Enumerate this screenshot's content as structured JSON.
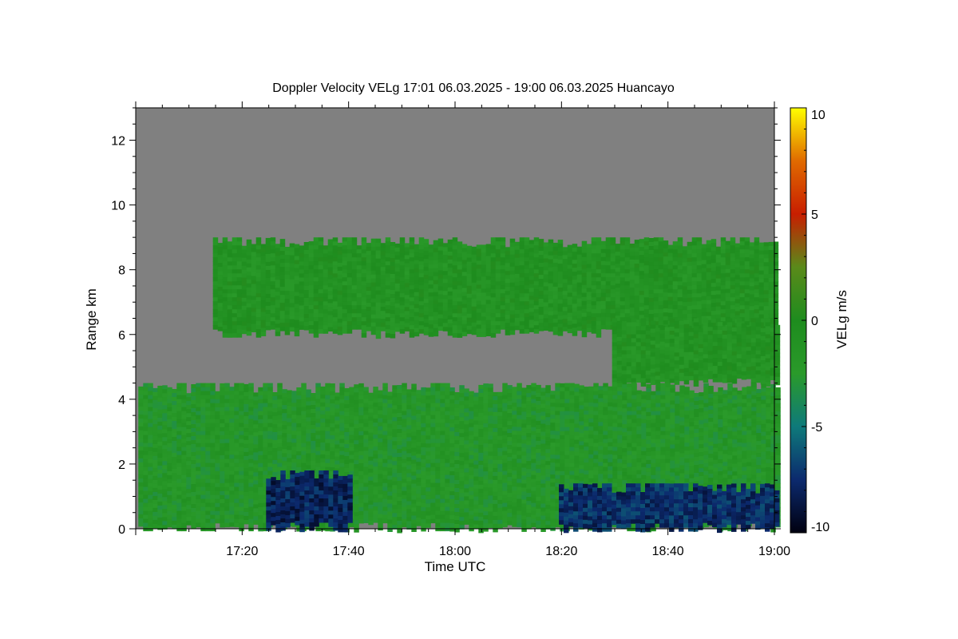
{
  "chart_data": {
    "type": "heatmap",
    "title": "Doppler Velocity VELg   17:01 06.03.2025 - 19:00 06.03.2025 Huancayo",
    "xlabel": "Time UTC",
    "ylabel": "Range km",
    "x_range": [
      "17:01",
      "19:00"
    ],
    "x_ticks": [
      "17:20",
      "17:40",
      "18:00",
      "18:20",
      "18:40",
      "19:00"
    ],
    "ylim": [
      0,
      13
    ],
    "y_ticks": [
      "0",
      "2",
      "4",
      "6",
      "8",
      "10",
      "12"
    ],
    "colorbar": {
      "label": "VELg m/s",
      "range": [
        -10,
        10
      ],
      "ticks": [
        "10",
        "5",
        "0",
        "-5",
        "-10"
      ],
      "colors": [
        "#000010",
        "#0c2a6e",
        "#0e7a7a",
        "#2a9a2a",
        "#1e8c1e",
        "#5a8a1a",
        "#c81e00",
        "#e06a00",
        "#ffff00"
      ]
    },
    "background_value_color": "#808080",
    "regions": [
      {
        "name": "upper cloud layer",
        "x_start": "17:15",
        "x_end": "19:00",
        "range_km": [
          6.0,
          9.0
        ],
        "velocity_ms": -1.0
      },
      {
        "name": "mid cloud layer",
        "x_start": "18:30",
        "x_end": "19:00",
        "range_km": [
          4.5,
          6.5
        ],
        "velocity_ms": -1.0
      },
      {
        "name": "lower cloud layer",
        "x_start": "17:01",
        "x_end": "19:00",
        "range_km": [
          0.0,
          4.5
        ],
        "velocity_ms": -2.0
      },
      {
        "name": "precipitation band",
        "x_start": "17:25",
        "x_end": "17:40",
        "range_km": [
          0.0,
          1.8
        ],
        "velocity_ms": -8.0
      },
      {
        "name": "precipitation band",
        "x_start": "18:20",
        "x_end": "19:00",
        "range_km": [
          0.0,
          1.4
        ],
        "velocity_ms": -7.5
      }
    ]
  }
}
